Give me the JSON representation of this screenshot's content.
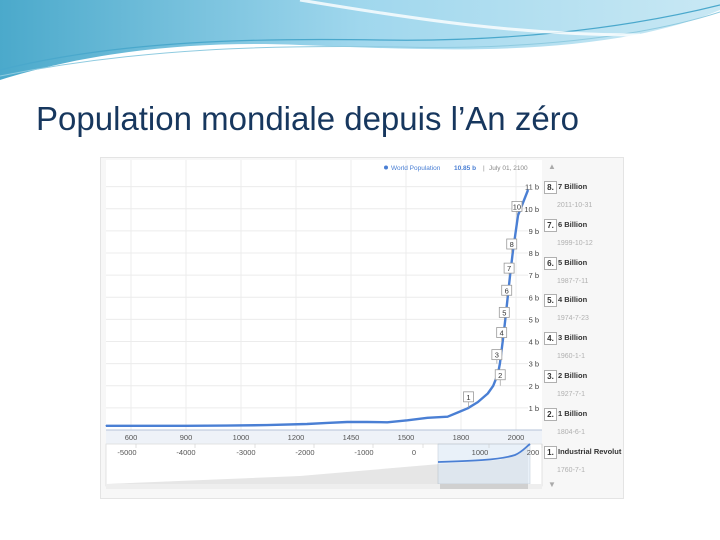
{
  "slide": {
    "title": "Population mondiale depuis l’An zéro"
  },
  "colors": {
    "title": "#17375e",
    "series": "#4a7fd4",
    "banner_light": "#bfe4f2",
    "banner_dark": "#2b9ac2"
  },
  "chart_data": {
    "type": "line",
    "series": [
      {
        "name": "World Population",
        "x": [
          0,
          200,
          400,
          600,
          800,
          1000,
          1100,
          1200,
          1300,
          1400,
          1500,
          1600,
          1700,
          1750,
          1800,
          1850,
          1900,
          1927,
          1950,
          1960,
          1974,
          1980,
          1987,
          1999,
          2011,
          2024,
          2050,
          2100
        ],
        "values": [
          0.19,
          0.19,
          0.19,
          0.2,
          0.22,
          0.27,
          0.32,
          0.36,
          0.36,
          0.35,
          0.44,
          0.55,
          0.6,
          0.79,
          0.98,
          1.26,
          1.65,
          2.0,
          2.53,
          3.0,
          4.0,
          4.44,
          5.0,
          6.0,
          7.0,
          8.0,
          9.7,
          10.85
        ]
      }
    ],
    "xlim": [
      0,
      2100
    ],
    "ylim": [
      0,
      11.3
    ],
    "x_ticks": [
      "600",
      "900",
      "1000",
      "1200",
      "1450",
      "1500",
      "1800",
      "2000"
    ],
    "y_ticks": [
      "1 b",
      "2 b",
      "3 b",
      "4 b",
      "5 b",
      "6 b",
      "7 b",
      "8 b",
      "9 b",
      "10 b",
      "11 b"
    ],
    "grid": true,
    "legend": {
      "series_label": "World Population",
      "value": "10.85 b",
      "separator": "|",
      "date": "July 01, 2100"
    },
    "navigator": {
      "ticks": [
        "-5000",
        "-4000",
        "-3000",
        "-2000",
        "-1000",
        "0",
        "1000",
        "200"
      ]
    },
    "annotations": [
      {
        "flag": "1",
        "x": 1804
      },
      {
        "flag": "2",
        "x": 1927
      },
      {
        "flag": "3",
        "x": 1960
      },
      {
        "flag": "4",
        "x": 1974
      },
      {
        "flag": "5",
        "x": 1987
      },
      {
        "flag": "6",
        "x": 1999
      },
      {
        "flag": "7",
        "x": 2011
      },
      {
        "flag": "10",
        "x": 2050
      },
      {
        "flag": "8",
        "x": 2024
      }
    ]
  },
  "events": {
    "items": [
      {
        "badge": "8.",
        "label": "7 Billion"
      },
      {
        "date": "2011-10-31"
      },
      {
        "badge": "7.",
        "label": "6 Billion"
      },
      {
        "date": "1999-10-12"
      },
      {
        "badge": "6.",
        "label": "5 Billion"
      },
      {
        "date": "1987-7-11"
      },
      {
        "badge": "5.",
        "label": "4 Billion"
      },
      {
        "date": "1974-7-23"
      },
      {
        "badge": "4.",
        "label": "3 Billion"
      },
      {
        "date": "1960-1-1"
      },
      {
        "badge": "3.",
        "label": "2 Billion"
      },
      {
        "date": "1927-7-1"
      },
      {
        "badge": "2.",
        "label": "1 Billion"
      },
      {
        "date": "1804-6-1"
      },
      {
        "badge": "1.",
        "label": "Industrial Revolut"
      },
      {
        "date": "1760-7-1"
      }
    ],
    "scroll_up": "▲",
    "scroll_down": "▼"
  }
}
